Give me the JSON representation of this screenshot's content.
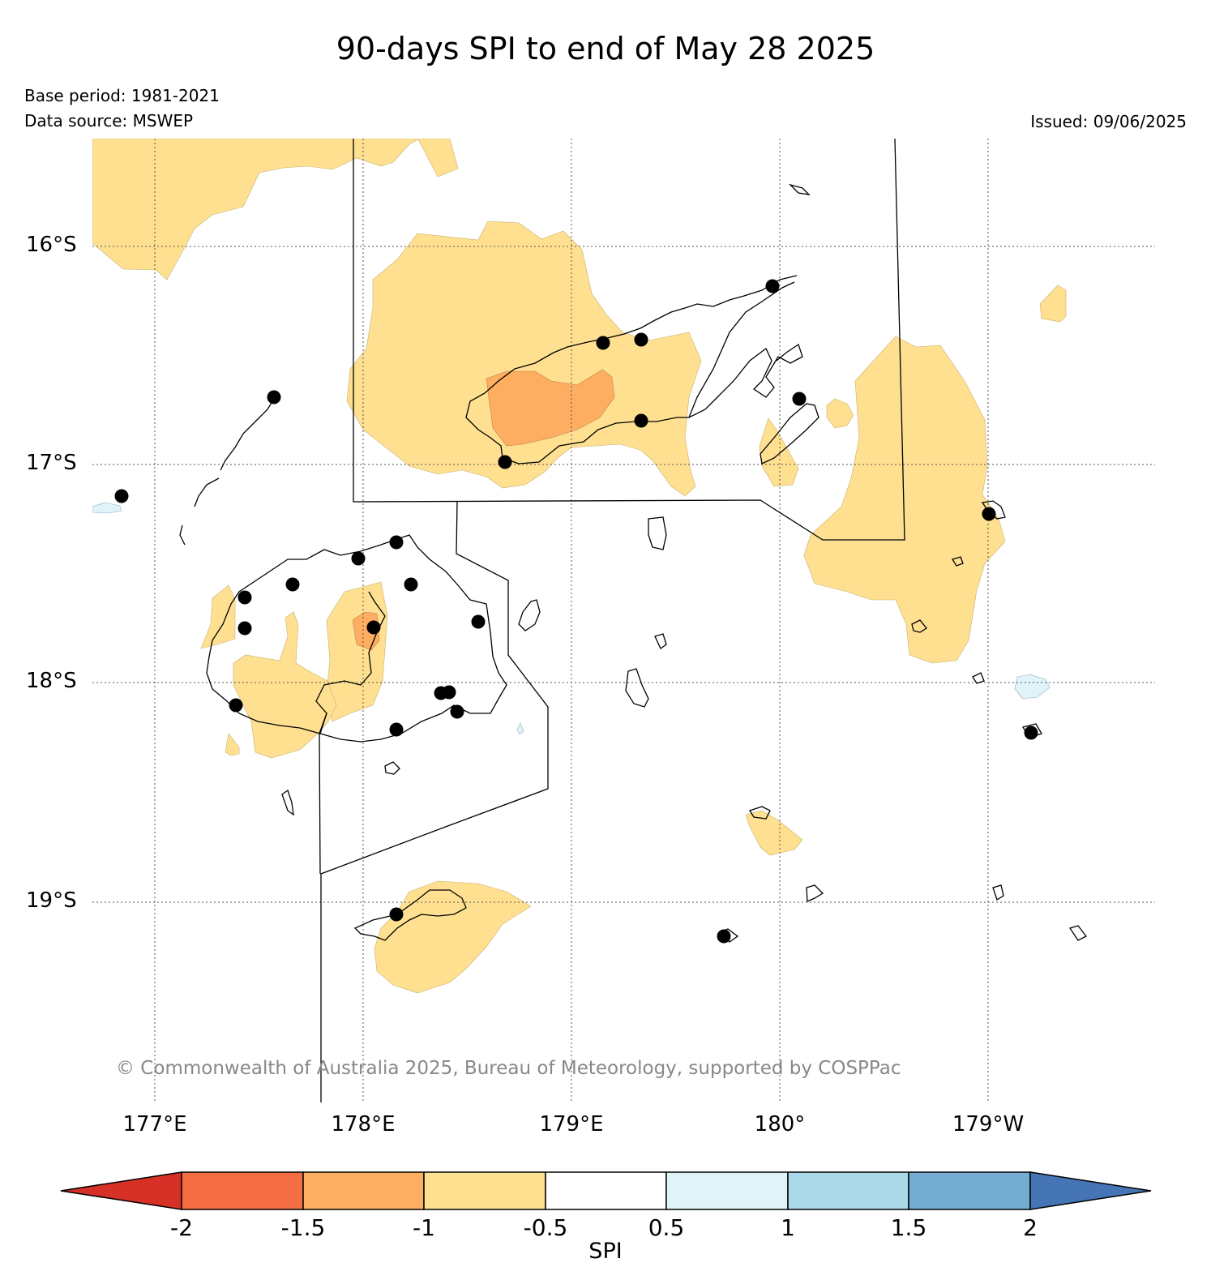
{
  "title": "90-days SPI to end of May 28 2025",
  "base_period": "Base period: 1981-2021",
  "data_source": "Data source: MSWEP",
  "issued": "Issued: 09/06/2025",
  "credit": "© Commonwealth of Australia 2025, Bureau of Meteorology, supported by COSPPac",
  "lat_labels": [
    "16°S",
    "17°S",
    "18°S",
    "19°S"
  ],
  "lon_labels": [
    "177°E",
    "178°E",
    "179°E",
    "180°",
    "179°W"
  ],
  "colorbar": {
    "title": "SPI",
    "ticks": [
      "-2",
      "-1.5",
      "-1",
      "-0.5",
      "0.5",
      "1",
      "1.5",
      "2"
    ],
    "colors": {
      "below_-2": "#d73027",
      "-2_to_-1.5": "#f46d43",
      "-1.5_to_-1": "#fdae61",
      "-1_to_-0.5": "#fee090",
      "-0.5_to_0.5": "#ffffff",
      "0.5_to_1": "#e0f3f8",
      "1_to_1.5": "#abd9e9",
      "1.5_to_2": "#74add1",
      "above_2": "#4575b4"
    }
  }
}
